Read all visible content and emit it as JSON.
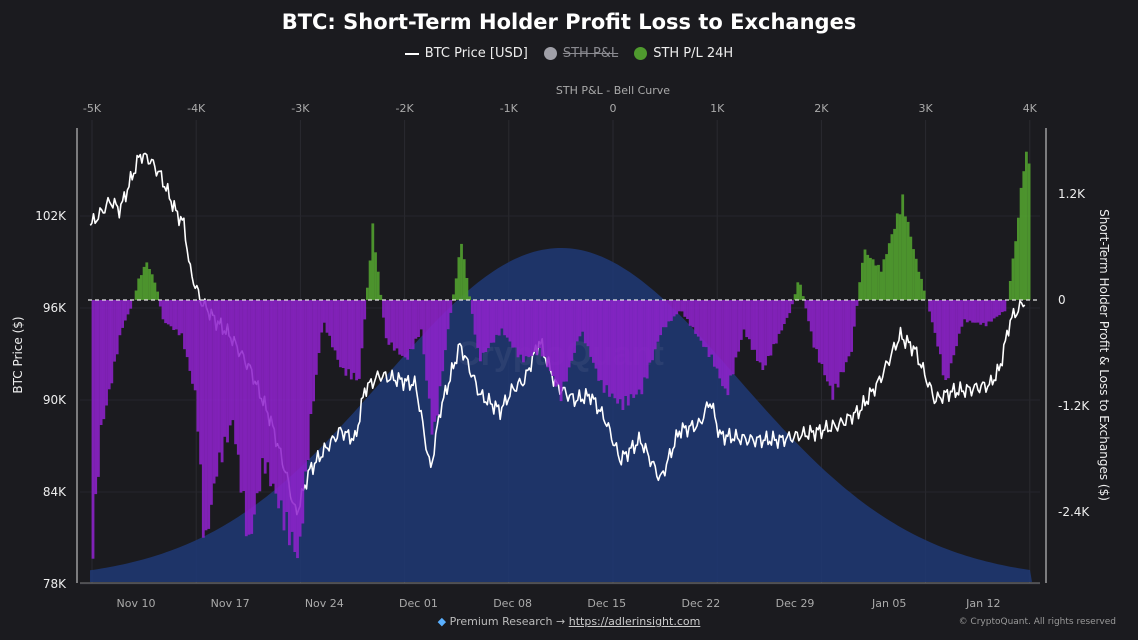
{
  "chart_data": {
    "type": "bar+line+area",
    "title": "BTC: Short-Term Holder Profit Loss to Exchanges",
    "legend": [
      {
        "label": "BTC Price [USD]",
        "color": "#ffffff",
        "marker": "line",
        "hidden": false
      },
      {
        "label": "STH P&L",
        "color": "#a0a0a8",
        "marker": "dot",
        "hidden": true
      },
      {
        "label": "STH P/L 24H",
        "color": "#4f9a2e",
        "marker": "dot",
        "hidden": false
      }
    ],
    "legend_position": "top-center",
    "top_axis": {
      "label": "STH P&L - Bell Curve",
      "ticks": [
        "-5K",
        "-4K",
        "-3K",
        "-2K",
        "-1K",
        "0",
        "1K",
        "2K",
        "3K",
        "4K"
      ],
      "tick_values": [
        -5,
        -4,
        -3,
        -2,
        -1,
        0,
        1,
        2,
        3,
        4
      ]
    },
    "bell_curve": {
      "mean_k": -0.5,
      "sd_k": 1.7,
      "color": "#1f3876"
    },
    "x_axis": {
      "ticks": [
        "Nov 10",
        "Nov 17",
        "Nov 24",
        "Dec 01",
        "Dec 08",
        "Dec 15",
        "Dec 22",
        "Dec 29",
        "Jan 05",
        "Jan 12"
      ],
      "tick_days": [
        0,
        7,
        14,
        21,
        28,
        35,
        42,
        49,
        56,
        63
      ],
      "day_origin": "Nov 10"
    },
    "y_left": {
      "label": "BTC Price ($)",
      "ticks": [
        "78K",
        "84K",
        "90K",
        "96K",
        "102K"
      ],
      "tick_values": [
        78,
        84,
        90,
        96,
        102
      ],
      "range_k": [
        78,
        107.5
      ]
    },
    "y_right": {
      "label": "Short-Term Holder Profit & Loss to Exchanges ($)",
      "ticks": [
        "-2.4K",
        "-1.2K",
        "0",
        "1.2K"
      ],
      "tick_values": [
        -2.4,
        -1.2,
        0,
        1.2
      ]
    },
    "colors": {
      "positive": "#4f9a2e",
      "negative": "#8e22cc",
      "price": "#ffffff"
    },
    "price_series_k": [
      [
        -3.4,
        101.4
      ],
      [
        -2.7,
        102.1
      ],
      [
        -1.9,
        103
      ],
      [
        -1.2,
        102.4
      ],
      [
        -0.4,
        104.3
      ],
      [
        0.3,
        106
      ],
      [
        1.0,
        105.7
      ],
      [
        1.8,
        104.7
      ],
      [
        2.9,
        102.4
      ],
      [
        3.6,
        101.4
      ],
      [
        4.0,
        98.5
      ],
      [
        4.8,
        96.5
      ],
      [
        5.9,
        95.2
      ],
      [
        7.0,
        94.2
      ],
      [
        8.5,
        92
      ],
      [
        10.0,
        88.7
      ],
      [
        11.1,
        85.4
      ],
      [
        11.9,
        82.5
      ],
      [
        12.9,
        85.4
      ],
      [
        14.0,
        86.7
      ],
      [
        15.2,
        88
      ],
      [
        16.3,
        87.4
      ],
      [
        17.0,
        90.7
      ],
      [
        18.1,
        91.6
      ],
      [
        19.6,
        91.3
      ],
      [
        20.8,
        91
      ],
      [
        21.9,
        85.4
      ],
      [
        22.6,
        89.3
      ],
      [
        24.1,
        93.6
      ],
      [
        25.6,
        90.3
      ],
      [
        27.1,
        89.3
      ],
      [
        28,
        90.7
      ],
      [
        28.9,
        91.3
      ],
      [
        30,
        93.9
      ],
      [
        31.2,
        91
      ],
      [
        32.6,
        90
      ],
      [
        33.8,
        90.3
      ],
      [
        34.9,
        88.7
      ],
      [
        36,
        86.1
      ],
      [
        37.5,
        87.4
      ],
      [
        39,
        84.8
      ],
      [
        40.4,
        88
      ],
      [
        41.9,
        88.4
      ],
      [
        42.7,
        90
      ],
      [
        43.4,
        87.7
      ],
      [
        45.7,
        87.4
      ],
      [
        47.9,
        87.4
      ],
      [
        49.4,
        87.7
      ],
      [
        50.9,
        88
      ],
      [
        52.3,
        88.4
      ],
      [
        53.8,
        89.3
      ],
      [
        55.3,
        91.3
      ],
      [
        56.8,
        94.2
      ],
      [
        57.9,
        93.3
      ],
      [
        59.4,
        90
      ],
      [
        60.5,
        90.5
      ],
      [
        62,
        90.7
      ],
      [
        63.5,
        91
      ],
      [
        64.2,
        92
      ],
      [
        65,
        95.2
      ],
      [
        66.1,
        96.5
      ]
    ],
    "sth_pl_24h_k": [
      [
        -3.3,
        -2.77
      ],
      [
        -2.7,
        -1.47
      ],
      [
        -1.9,
        -0.9
      ],
      [
        -1.2,
        -0.34
      ],
      [
        -0.4,
        -0.06
      ],
      [
        0.1,
        0.23
      ],
      [
        0.7,
        0.43
      ],
      [
        1.4,
        0.17
      ],
      [
        1.9,
        -0.23
      ],
      [
        3.3,
        -0.4
      ],
      [
        4.4,
        -1.13
      ],
      [
        5.0,
        -2.83
      ],
      [
        5.9,
        -1.92
      ],
      [
        7.1,
        -1.36
      ],
      [
        8.3,
        -2.77
      ],
      [
        9.4,
        -1.81
      ],
      [
        10.7,
        -2.38
      ],
      [
        12.0,
        -2.94
      ],
      [
        12.9,
        -1.36
      ],
      [
        13.8,
        -0.23
      ],
      [
        15.2,
        -0.79
      ],
      [
        16.5,
        -0.9
      ],
      [
        17.5,
        0.82
      ],
      [
        18.5,
        -0.45
      ],
      [
        20,
        -0.68
      ],
      [
        21.1,
        -0.34
      ],
      [
        22.0,
        -1.58
      ],
      [
        23.1,
        -0.34
      ],
      [
        24.1,
        0.66
      ],
      [
        25.4,
        -0.68
      ],
      [
        27.1,
        -0.34
      ],
      [
        28.6,
        -0.68
      ],
      [
        30,
        -0.57
      ],
      [
        31.5,
        -1.08
      ],
      [
        33,
        -0.34
      ],
      [
        34.5,
        -0.96
      ],
      [
        36,
        -1.19
      ],
      [
        37.5,
        -1.02
      ],
      [
        39,
        -0.34
      ],
      [
        40.4,
        -0.11
      ],
      [
        42.8,
        -0.68
      ],
      [
        43.8,
        -1.08
      ],
      [
        45.1,
        -0.34
      ],
      [
        46.5,
        -0.79
      ],
      [
        48.6,
        -0.11
      ],
      [
        49.2,
        0.25
      ],
      [
        50.3,
        -0.51
      ],
      [
        51.7,
        -1.08
      ],
      [
        53.1,
        -0.57
      ],
      [
        54.0,
        0.57
      ],
      [
        55.3,
        0.34
      ],
      [
        56.9,
        1.13
      ],
      [
        57.9,
        0.45
      ],
      [
        58.7,
        0
      ],
      [
        59.6,
        -0.57
      ],
      [
        60.1,
        -0.96
      ],
      [
        61.4,
        -0.23
      ],
      [
        63.1,
        -0.28
      ],
      [
        64.6,
        -0.11
      ],
      [
        65.4,
        0.79
      ],
      [
        65.9,
        1.53
      ],
      [
        66.5,
        1.7
      ]
    ]
  },
  "watermark": "CryptoQuant",
  "footer": {
    "prefix": "Premium Research →",
    "link": "https://adlerinsight.com",
    "copyright": "© CryptoQuant. All rights reserved"
  }
}
